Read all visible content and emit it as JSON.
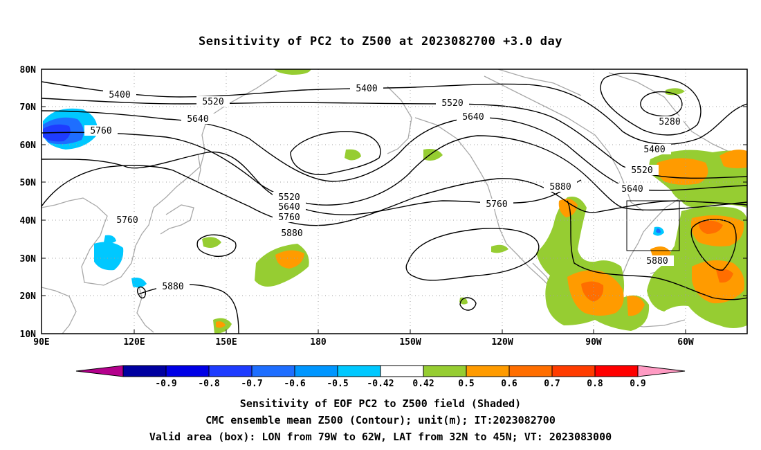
{
  "title": "Sensitivity of PC2 to Z500 at 2023082700 +3.0 day",
  "map": {
    "region": {
      "lon_west": "90E",
      "lon_east": "40W",
      "lat_south": "10N",
      "lat_north": "80N"
    },
    "lat_labels": [
      "80N",
      "70N",
      "60N",
      "50N",
      "40N",
      "30N",
      "20N",
      "10N"
    ],
    "lon_labels": [
      "90E",
      "120E",
      "150E",
      "180",
      "150W",
      "120W",
      "90W",
      "60W"
    ],
    "contour_values": [
      "5280",
      "5400",
      "5400",
      "5400",
      "5520",
      "5520",
      "5520",
      "5520",
      "5640",
      "5640",
      "5640",
      "5640",
      "5760",
      "5760",
      "5760",
      "5760",
      "5880",
      "5880",
      "5880",
      "5880"
    ],
    "valid_box": {
      "lon_from": "79W",
      "lon_to": "62W",
      "lat_from": "32N",
      "lat_to": "45N"
    }
  },
  "colorbar": {
    "labels": [
      "-0.9",
      "-0.8",
      "-0.7",
      "-0.6",
      "-0.5",
      "-0.42",
      "0.42",
      "0.5",
      "0.6",
      "0.7",
      "0.8",
      "0.9"
    ],
    "colors": [
      "#b4008c",
      "#0000a0",
      "#0000e6",
      "#1e3cff",
      "#1e6eff",
      "#0096ff",
      "#00c8ff",
      "#ffffff",
      "#96cd32",
      "#ff9b00",
      "#ff6e00",
      "#ff3c00",
      "#ff0000",
      "#ff9bc3"
    ]
  },
  "captions": [
    "Sensitivity of EOF PC2 to Z500 field (Shaded)",
    "CMC ensemble mean Z500 (Contour); unit(m); IT:2023082700",
    "Valid area (box): LON from 79W to 62W, LAT from 32N to 45N; VT: 2023083000"
  ]
}
